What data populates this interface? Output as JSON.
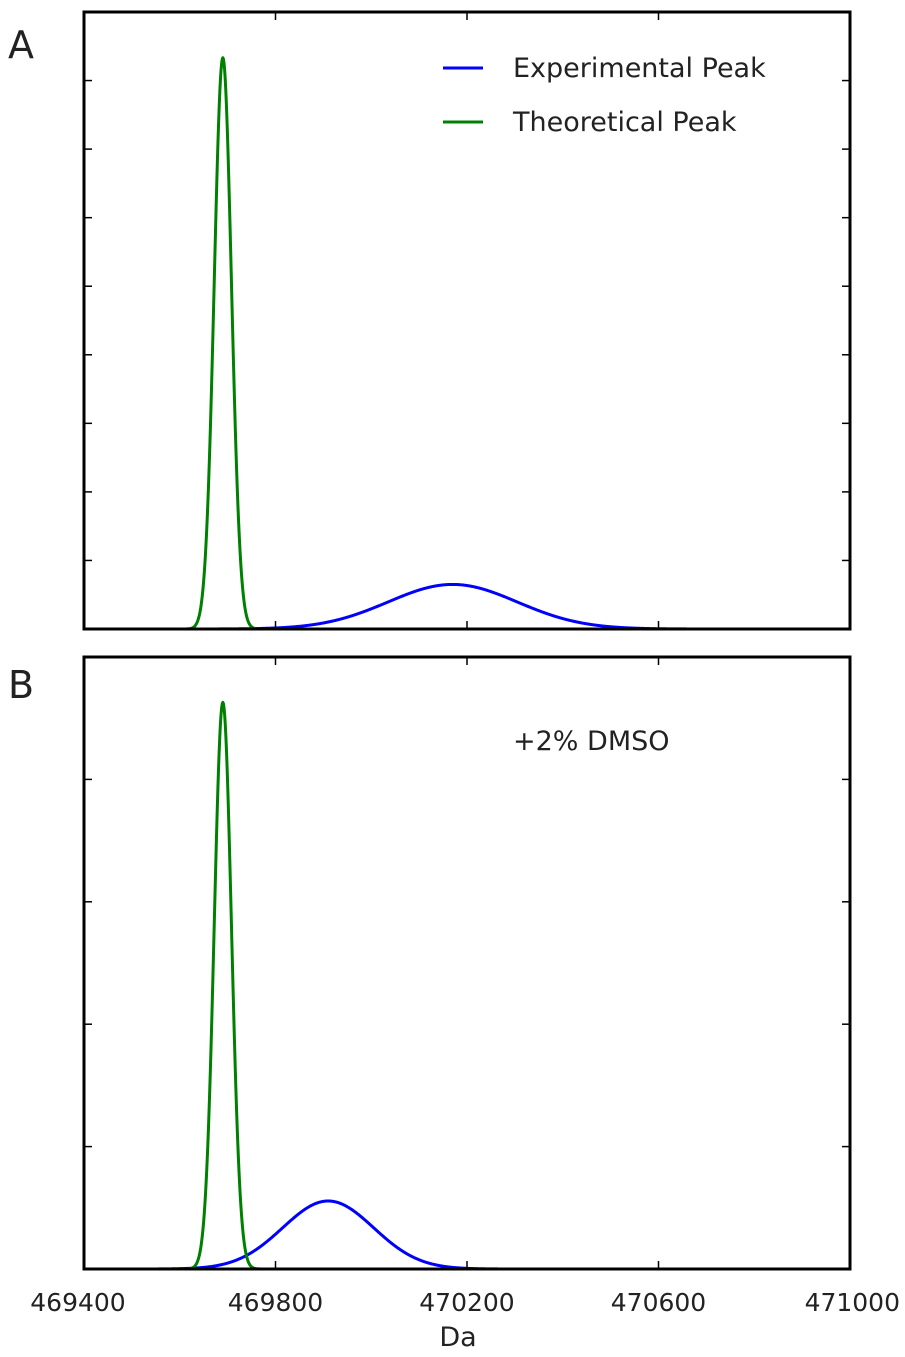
{
  "chart_data": [
    {
      "panel": "A",
      "type": "line",
      "xlim": [
        469400,
        471000
      ],
      "ylim": [
        0,
        1.08
      ],
      "xlabel": "",
      "grid": false,
      "legend_placement": "top-right",
      "legend": [
        "Experimental Peak",
        "Theoretical Peak"
      ],
      "series": [
        {
          "name": "Experimental Peak",
          "color": "#0000ff",
          "shape": "gaussian",
          "center": 470170,
          "sigma": 135,
          "amplitude": 0.078,
          "x_range": [
            469500,
            471000
          ]
        },
        {
          "name": "Theoretical Peak",
          "color": "#008000",
          "shape": "gaussian",
          "center": 469690,
          "sigma": 18,
          "amplitude": 1.0,
          "x_range": [
            469500,
            471000
          ]
        }
      ]
    },
    {
      "panel": "B",
      "type": "line",
      "xlim": [
        469400,
        471000
      ],
      "ylim": [
        0,
        1.08
      ],
      "xlabel": "Da",
      "xticks": [
        "469400",
        "469800",
        "470200",
        "470600",
        "471000"
      ],
      "grid": false,
      "annotation": "+2% DMSO",
      "series": [
        {
          "name": "Experimental Peak",
          "color": "#0000ff",
          "shape": "gaussian",
          "center": 469910,
          "sigma": 95,
          "amplitude": 0.12,
          "x_range": [
            469500,
            471000
          ]
        },
        {
          "name": "Theoretical Peak",
          "color": "#008000",
          "shape": "gaussian",
          "center": 469690,
          "sigma": 18,
          "amplitude": 1.0,
          "x_range": [
            469500,
            471000
          ]
        }
      ]
    }
  ]
}
